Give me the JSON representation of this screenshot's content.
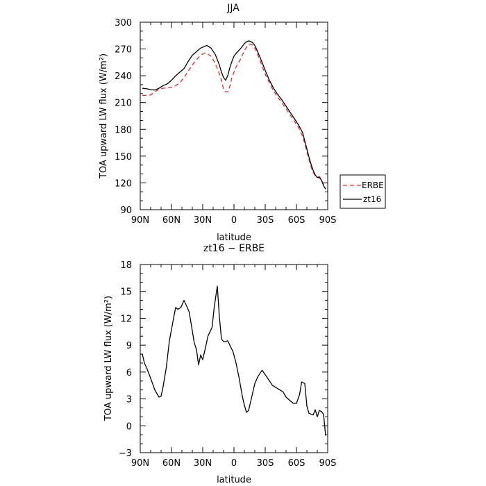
{
  "chart_data": [
    {
      "type": "line",
      "title": "JJA",
      "xlabel": "latitude",
      "ylabel": "TOA upward LW flux (W/m²)",
      "xlim": [
        90,
        -90
      ],
      "ylim": [
        90,
        300
      ],
      "xticks": [
        90,
        60,
        30,
        0,
        -30,
        -60,
        -90
      ],
      "xtick_labels": [
        "90N",
        "60N",
        "30N",
        "0",
        "30S",
        "60S",
        "90S"
      ],
      "yticks": [
        90,
        120,
        150,
        180,
        210,
        240,
        270,
        300
      ],
      "ytick_labels": [
        "90",
        "120",
        "150",
        "180",
        "210",
        "240",
        "270",
        "300"
      ],
      "legend": "right, outside plot",
      "series": [
        {
          "name": "ERBE",
          "color": "#e8272d",
          "dash": "dashed",
          "points": [
            [
              88,
              218
            ],
            [
              84,
              218
            ],
            [
              80,
              218.5
            ],
            [
              76,
              222
            ],
            [
              72,
              225
            ],
            [
              68,
              226
            ],
            [
              64,
              226.5
            ],
            [
              60,
              227
            ],
            [
              56,
              229
            ],
            [
              52,
              232
            ],
            [
              48,
              238
            ],
            [
              44,
              245
            ],
            [
              40,
              252
            ],
            [
              36,
              258
            ],
            [
              32,
              263
            ],
            [
              28,
              265.5
            ],
            [
              26,
              265
            ],
            [
              22,
              262
            ],
            [
              18,
              254
            ],
            [
              14,
              242
            ],
            [
              12,
              235
            ],
            [
              10,
              225
            ],
            [
              8,
              222
            ],
            [
              6,
              222
            ],
            [
              4,
              228
            ],
            [
              2,
              238
            ],
            [
              0,
              244
            ],
            [
              -2,
              250
            ],
            [
              -6,
              258
            ],
            [
              -10,
              268
            ],
            [
              -12,
              272
            ],
            [
              -14,
              275
            ],
            [
              -16,
              275.5
            ],
            [
              -18,
              274
            ],
            [
              -20,
              271
            ],
            [
              -22,
              266
            ],
            [
              -26,
              254
            ],
            [
              -30,
              242
            ],
            [
              -34,
              232
            ],
            [
              -38,
              223
            ],
            [
              -42,
              216
            ],
            [
              -46,
              210
            ],
            [
              -50,
              203
            ],
            [
              -54,
              196
            ],
            [
              -58,
              189
            ],
            [
              -62,
              182
            ],
            [
              -66,
              172
            ],
            [
              -68,
              164
            ],
            [
              -70,
              155
            ],
            [
              -72,
              146
            ],
            [
              -74,
              138
            ],
            [
              -76,
              132
            ],
            [
              -78,
              128
            ],
            [
              -80,
              127
            ],
            [
              -82,
              127
            ],
            [
              -84,
              124
            ],
            [
              -86,
              118
            ],
            [
              -88,
              113
            ]
          ]
        },
        {
          "name": "zt16",
          "color": "#000000",
          "dash": "solid",
          "points": [
            [
              88,
              226
            ],
            [
              84,
              225.5
            ],
            [
              80,
              224.5
            ],
            [
              76,
              224
            ],
            [
              72,
              226
            ],
            [
              68,
              229
            ],
            [
              64,
              231
            ],
            [
              60,
              235
            ],
            [
              56,
              240
            ],
            [
              52,
              244
            ],
            [
              48,
              248
            ],
            [
              44,
              256
            ],
            [
              40,
              263
            ],
            [
              36,
              267
            ],
            [
              32,
              271
            ],
            [
              28,
              273
            ],
            [
              26,
              274
            ],
            [
              22,
              271
            ],
            [
              18,
              264
            ],
            [
              14,
              252
            ],
            [
              12,
              244
            ],
            [
              10,
              238
            ],
            [
              8,
              235
            ],
            [
              6,
              240
            ],
            [
              4,
              249
            ],
            [
              2,
              256
            ],
            [
              0,
              262
            ],
            [
              -2,
              265
            ],
            [
              -6,
              270
            ],
            [
              -10,
              276
            ],
            [
              -12,
              278
            ],
            [
              -14,
              279
            ],
            [
              -16,
              278.5
            ],
            [
              -18,
              277
            ],
            [
              -20,
              274
            ],
            [
              -22,
              269
            ],
            [
              -26,
              258
            ],
            [
              -30,
              246
            ],
            [
              -34,
              235
            ],
            [
              -38,
              226
            ],
            [
              -42,
              219
            ],
            [
              -46,
              213
            ],
            [
              -50,
              206
            ],
            [
              -54,
              199
            ],
            [
              -58,
              192
            ],
            [
              -62,
              185
            ],
            [
              -66,
              176
            ],
            [
              -68,
              167
            ],
            [
              -70,
              158
            ],
            [
              -72,
              149
            ],
            [
              -74,
              141
            ],
            [
              -76,
              134
            ],
            [
              -78,
              129
            ],
            [
              -80,
              126
            ],
            [
              -82,
              126
            ],
            [
              -84,
              123
            ],
            [
              -86,
              117
            ],
            [
              -88,
              113
            ]
          ]
        }
      ]
    },
    {
      "type": "line",
      "title": "zt16 − ERBE",
      "xlabel": "latitude",
      "ylabel": "TOA upward LW flux (W/m²)",
      "xlim": [
        90,
        -90
      ],
      "ylim": [
        -3,
        18
      ],
      "xticks": [
        90,
        60,
        30,
        0,
        -30,
        -60,
        -90
      ],
      "xtick_labels": [
        "90N",
        "60N",
        "30N",
        "0",
        "30S",
        "60S",
        "90S"
      ],
      "yticks": [
        -3,
        0,
        3,
        6,
        9,
        12,
        15,
        18
      ],
      "ytick_labels": [
        "−3",
        "0",
        "3",
        "6",
        "9",
        "12",
        "15",
        "18"
      ],
      "series": [
        {
          "color": "#000000",
          "dash": "solid",
          "points": [
            [
              88,
              8.0
            ],
            [
              86,
              7.0
            ],
            [
              84,
              6.5
            ],
            [
              80,
              5.3
            ],
            [
              76,
              4.0
            ],
            [
              72,
              3.2
            ],
            [
              70,
              3.3
            ],
            [
              68,
              4.4
            ],
            [
              65,
              6.5
            ],
            [
              62,
              9.5
            ],
            [
              58,
              12.0
            ],
            [
              56,
              13.2
            ],
            [
              54,
              13.0
            ],
            [
              51,
              13.2
            ],
            [
              48,
              14.0
            ],
            [
              46,
              13.5
            ],
            [
              43,
              12.7
            ],
            [
              41,
              11.3
            ],
            [
              38,
              9.2
            ],
            [
              36,
              8.5
            ],
            [
              34,
              6.8
            ],
            [
              32,
              7.9
            ],
            [
              30,
              7.4
            ],
            [
              27,
              8.9
            ],
            [
              25,
              10.0
            ],
            [
              23,
              10.5
            ],
            [
              21,
              11.0
            ],
            [
              19,
              13.2
            ],
            [
              16,
              15.6
            ],
            [
              14,
              12.1
            ],
            [
              12,
              9.7
            ],
            [
              10,
              9.4
            ],
            [
              8,
              9.4
            ],
            [
              6,
              9.5
            ],
            [
              4,
              9.0
            ],
            [
              1,
              8.3
            ],
            [
              -2,
              7.0
            ],
            [
              -5,
              5.3
            ],
            [
              -8,
              3.3
            ],
            [
              -10,
              2.3
            ],
            [
              -12,
              1.5
            ],
            [
              -14,
              1.7
            ],
            [
              -17,
              3.2
            ],
            [
              -20,
              4.7
            ],
            [
              -23,
              5.5
            ],
            [
              -27,
              6.2
            ],
            [
              -30,
              5.7
            ],
            [
              -33,
              5.2
            ],
            [
              -37,
              4.5
            ],
            [
              -40,
              4.3
            ],
            [
              -44,
              4.0
            ],
            [
              -47,
              3.8
            ],
            [
              -50,
              3.2
            ],
            [
              -54,
              2.8
            ],
            [
              -57,
              2.5
            ],
            [
              -60,
              2.5
            ],
            [
              -63,
              3.5
            ],
            [
              -65,
              4.9
            ],
            [
              -68,
              4.7
            ],
            [
              -70,
              2.2
            ],
            [
              -72,
              1.4
            ],
            [
              -74,
              1.3
            ],
            [
              -76,
              1.2
            ],
            [
              -78,
              1.8
            ],
            [
              -80,
              1.0
            ],
            [
              -82,
              1.7
            ],
            [
              -84,
              1.6
            ],
            [
              -86,
              1.3
            ],
            [
              -88,
              -1.1
            ]
          ]
        }
      ]
    }
  ]
}
